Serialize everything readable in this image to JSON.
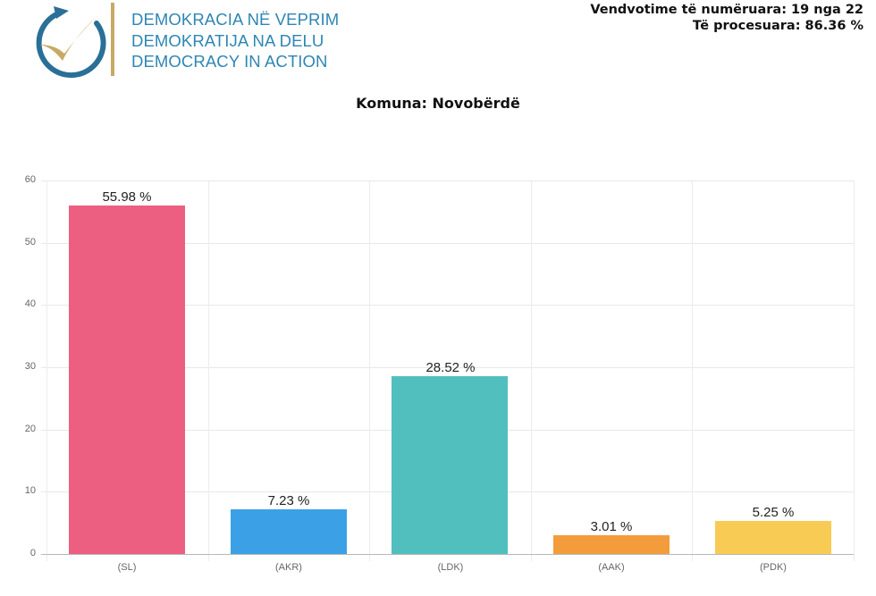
{
  "header": {
    "logo_lines": [
      "DEMOKRACIA NË VEPRIM",
      "DEMOKRATIJA NA DELU",
      "DEMOCRACY IN ACTION"
    ],
    "logo_colors": {
      "ring": "#2a6f97",
      "check": "#c8a964",
      "divider": "#c8a964",
      "text": "#2e86b4"
    },
    "counted_label": "Vendvotime të numëruara: 19 nga 22",
    "processed_label": "Të procesuara: 86.36 %"
  },
  "chart_data": {
    "type": "bar",
    "title": "Komuna: Novobërdë",
    "categories": [
      "(SL)",
      "(AKR)",
      "(LDK)",
      "(AAK)",
      "(PDK)"
    ],
    "values": [
      55.98,
      7.23,
      28.52,
      3.01,
      5.25
    ],
    "value_labels": [
      "55.98 %",
      "7.23 %",
      "28.52 %",
      "3.01 %",
      "5.25 %"
    ],
    "colors": [
      "#ec5f80",
      "#3ba0e6",
      "#52bfbf",
      "#f39c3c",
      "#f8cb55"
    ],
    "xlabel": "",
    "ylabel": "",
    "ylim": [
      0,
      60
    ],
    "yticks": [
      0,
      10,
      20,
      30,
      40,
      50,
      60
    ],
    "grid": true,
    "legend": "none"
  }
}
